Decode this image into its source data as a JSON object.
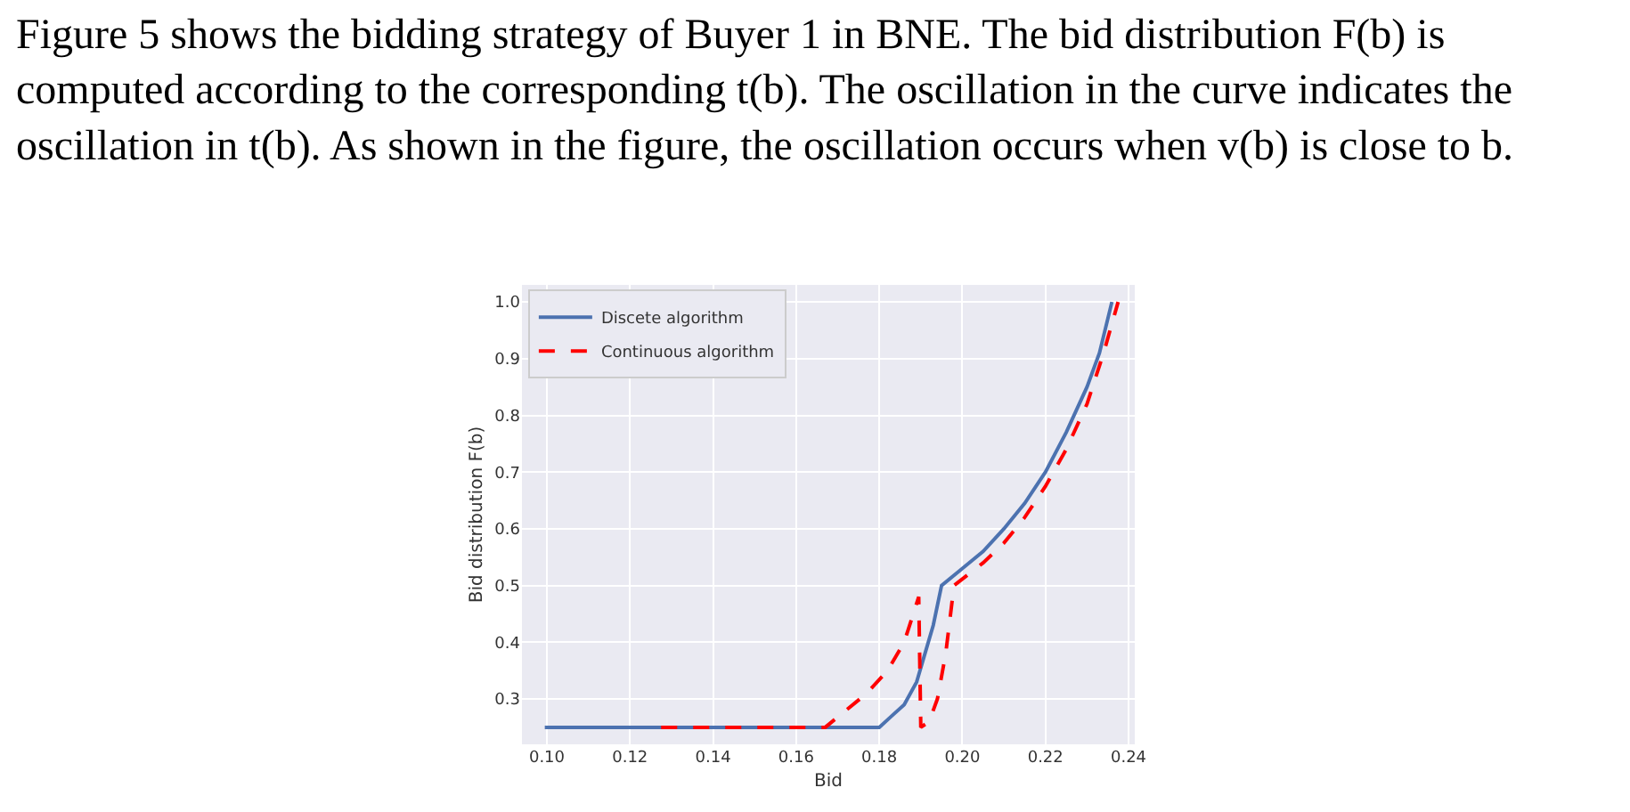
{
  "chart_data": {
    "type": "line",
    "xlabel": "Bid",
    "ylabel": "Bid distribution F(b)",
    "annotations": [
      "Figure 5 shows the bidding strategy of Buyer 1 in BNE. The bid distribution F(b) is\ncomputed according to the corresponding t(b). The oscillation in the curve indicates the\noscillation in t(b). As shown in the figure, the oscillation occurs when v(b) is close to b."
    ],
    "series": [
      {
        "name": "Discete algorithm",
        "color": "#4c72b0",
        "line_style": "solid",
        "x": [
          0.0995,
          0.18,
          0.183,
          0.186,
          0.189,
          0.191,
          0.193,
          0.195,
          0.2,
          0.205,
          0.21,
          0.215,
          0.22,
          0.225,
          0.23,
          0.233,
          0.236
        ],
        "values": [
          0.25,
          0.25,
          0.27,
          0.29,
          0.33,
          0.38,
          0.43,
          0.5,
          0.53,
          0.56,
          0.6,
          0.645,
          0.7,
          0.77,
          0.85,
          0.91,
          1.0
        ]
      },
      {
        "name": "Continuous algorithm",
        "color": "#ff0000",
        "line_style": "dashed",
        "x": [
          0.1275,
          0.167,
          0.172,
          0.177,
          0.182,
          0.186,
          0.1895,
          0.19,
          0.192,
          0.194,
          0.196,
          0.198,
          0.205,
          0.21,
          0.215,
          0.22,
          0.225,
          0.23,
          0.234,
          0.2375
        ],
        "values": [
          0.25,
          0.25,
          0.28,
          0.31,
          0.35,
          0.4,
          0.48,
          0.25,
          0.26,
          0.3,
          0.38,
          0.5,
          0.54,
          0.575,
          0.62,
          0.675,
          0.74,
          0.82,
          0.91,
          1.0
        ]
      }
    ],
    "xlim": [
      0.094,
      0.2415
    ],
    "ylim": [
      0.22,
      1.03
    ],
    "xticks": [
      {
        "value": 0.1,
        "label": "0.10"
      },
      {
        "value": 0.12,
        "label": "0.12"
      },
      {
        "value": 0.14,
        "label": "0.14"
      },
      {
        "value": 0.16,
        "label": "0.16"
      },
      {
        "value": 0.18,
        "label": "0.18"
      },
      {
        "value": 0.2,
        "label": "0.20"
      },
      {
        "value": 0.22,
        "label": "0.22"
      },
      {
        "value": 0.24,
        "label": "0.24"
      }
    ],
    "yticks": [
      0.3,
      0.4,
      0.5,
      0.6,
      0.7,
      0.8,
      0.9,
      {
        "value": 1.0,
        "label": "1.0"
      }
    ],
    "grid": true,
    "legend": "top left"
  }
}
